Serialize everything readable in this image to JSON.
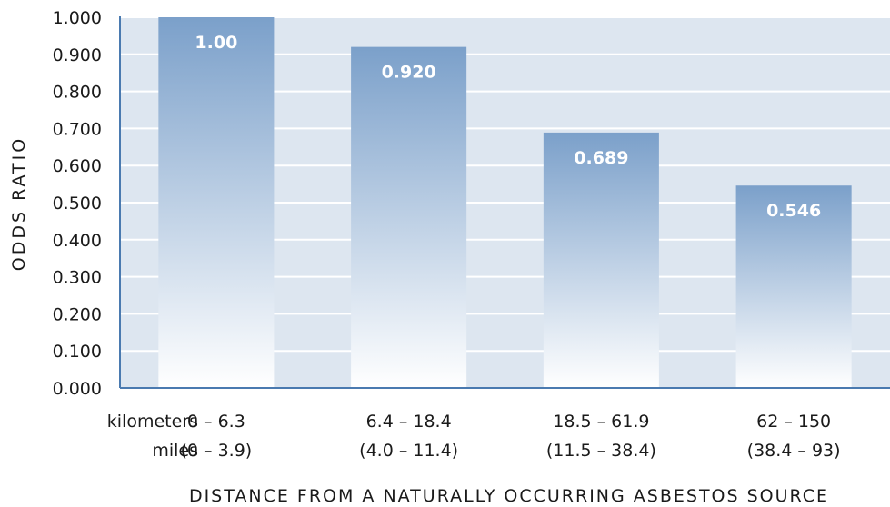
{
  "chart_data": {
    "type": "bar",
    "title": "",
    "ylabel": "ODDS RATIO",
    "xlabel": "DISTANCE FROM A NATURALLY OCCURRING ASBESTOS SOURCE",
    "ylim": [
      0,
      1
    ],
    "y_ticks": [
      "0.000",
      "0.100",
      "0.200",
      "0.300",
      "0.400",
      "0.500",
      "0.600",
      "0.700",
      "0.800",
      "0.900",
      "1.000"
    ],
    "grid": true,
    "row_labels": {
      "kilometers": "kilometers",
      "miles": "miles"
    },
    "categories": [
      {
        "km": "0 – 6.3",
        "miles": "(0 – 3.9)"
      },
      {
        "km": "6.4 – 18.4",
        "miles": "(4.0 – 11.4)"
      },
      {
        "km": "18.5 – 61.9",
        "miles": "(11.5 – 38.4)"
      },
      {
        "km": "62 – 150",
        "miles": "(38.4 – 93)"
      }
    ],
    "values": [
      1.0,
      0.92,
      0.689,
      0.546
    ],
    "value_labels": [
      "1.00",
      "0.920",
      "0.689",
      "0.546"
    ],
    "colors": {
      "plot_background": "#dde6f0",
      "grid": "#ffffff",
      "axis": "#4a7ab0",
      "bar_top": "#7ba0ca",
      "bar_bottom": "#ffffff",
      "value_label": "#ffffff",
      "text": "#1a1a1a"
    }
  }
}
